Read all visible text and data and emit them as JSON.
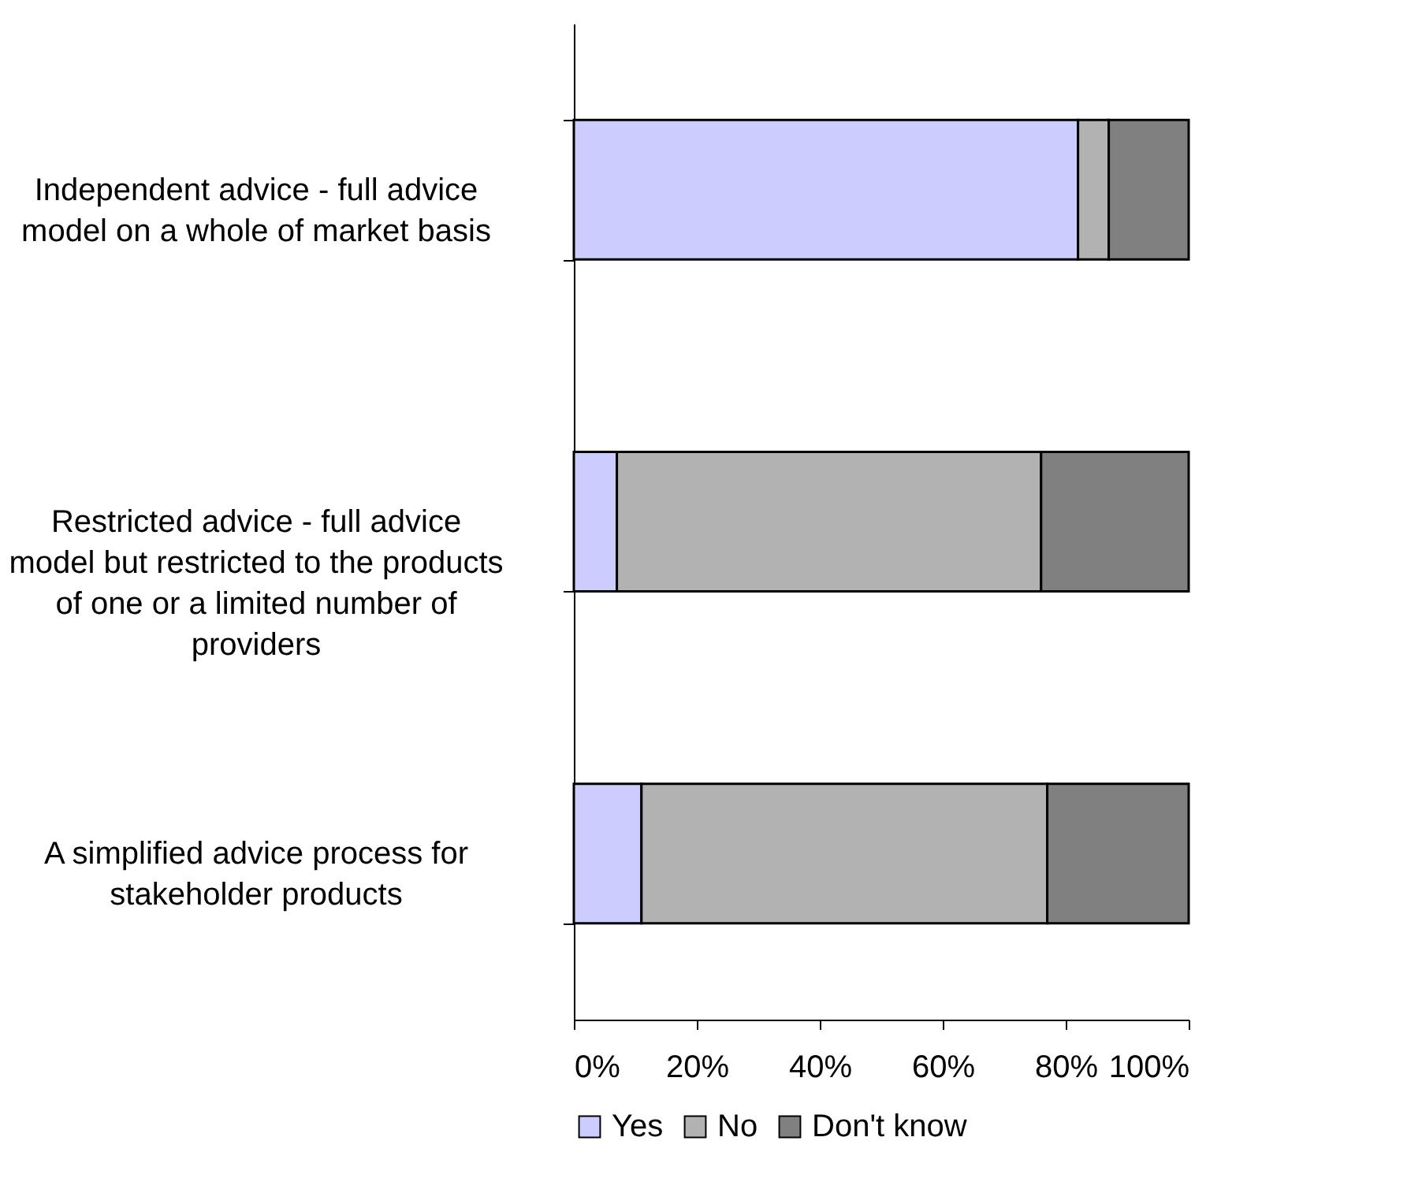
{
  "chart_data": {
    "type": "bar",
    "orientation": "horizontal",
    "stacked": true,
    "categories": [
      "Independent advice - full advice model on a whole of market basis",
      "Restricted advice - full advice model but restricted to the products of one or a limited number of providers",
      "A simplified advice process for stakeholder products"
    ],
    "series": [
      {
        "name": "Yes",
        "color": "#ccccff",
        "values": [
          82,
          7,
          11
        ]
      },
      {
        "name": "No",
        "color": "#b2b2b2",
        "values": [
          5,
          69,
          66
        ]
      },
      {
        "name": "Don't know",
        "color": "#808080",
        "values": [
          13,
          24,
          23
        ]
      }
    ],
    "xlim": [
      0,
      100
    ],
    "xticks": [
      {
        "value": 0,
        "label": "0%"
      },
      {
        "value": 20,
        "label": "20%"
      },
      {
        "value": 40,
        "label": "40%"
      },
      {
        "value": 60,
        "label": "60%"
      },
      {
        "value": 80,
        "label": "80%"
      },
      {
        "value": 100,
        "label": "100%"
      }
    ],
    "legend": "bottom",
    "grid": false
  }
}
